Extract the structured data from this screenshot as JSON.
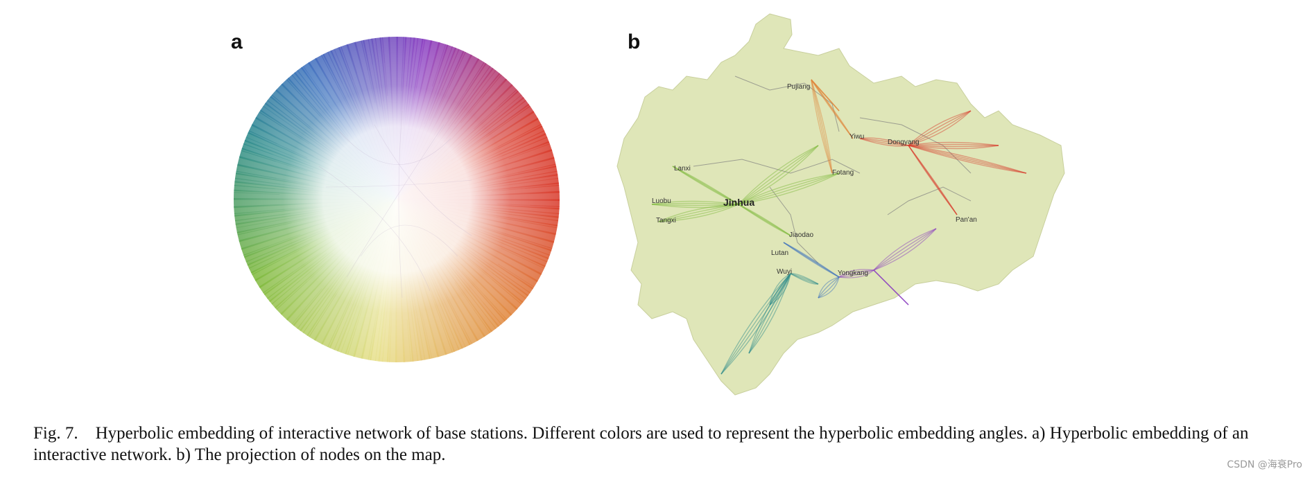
{
  "figure": {
    "panel_a_label": "a",
    "panel_b_label": "b",
    "caption": "Fig. 7. Hyperbolic embedding of interactive network of base stations. Different colors are used to represent the hyperbolic embedding angles. a) Hyperbolic embedding of an interactive network. b) The projection of nodes on the map.",
    "watermark": "CSDN @海衰Pro"
  },
  "map": {
    "cities": {
      "pujiang": "Pujiang",
      "yiwu": "Yiwu",
      "dongyang": "Dongyang",
      "lanxi": "Lanxi",
      "jinhua": "Jinhua",
      "fotang": "Fotang",
      "luobu": "Luobu",
      "tangxi": "Tangxi",
      "jiaodao": "Jiaodao",
      "panan": "Pan'an",
      "lutan": "Lutan",
      "wuyi": "Wuyi",
      "yongkang": "Yongkang"
    }
  },
  "colors": {
    "green": "#7cb83a",
    "blue": "#3a6fbd",
    "purple": "#8a3bbf",
    "red": "#d83a2a",
    "orange": "#e0853a",
    "yellow": "#e8e08a",
    "teal": "#2a8a8a",
    "map_fill": "#dfe6b8"
  }
}
